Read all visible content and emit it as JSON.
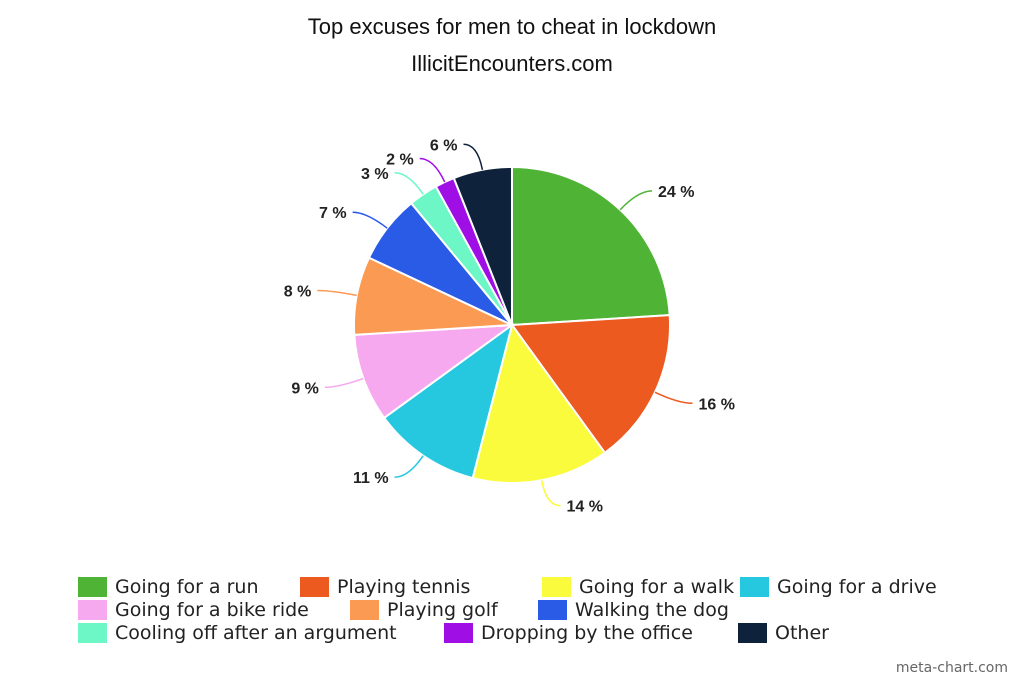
{
  "chart_data": {
    "type": "pie",
    "title": "Top excuses for men to cheat in lockdown",
    "subtitle": "IllicitEncounters.com",
    "slices": [
      {
        "label": "Going for a run",
        "value": 24,
        "value_label": "24 %",
        "color": "#4fb435"
      },
      {
        "label": "Playing tennis",
        "value": 16,
        "value_label": "16 %",
        "color": "#ec5a1f"
      },
      {
        "label": "Going for a walk",
        "value": 14,
        "value_label": "14 %",
        "color": "#fafb3c"
      },
      {
        "label": "Going for a drive",
        "value": 11,
        "value_label": "11 %",
        "color": "#26c8e0"
      },
      {
        "label": "Going for a bike ride",
        "value": 9,
        "value_label": "9 %",
        "color": "#f6a9ef"
      },
      {
        "label": "Playing golf",
        "value": 8,
        "value_label": "8 %",
        "color": "#fb9a53"
      },
      {
        "label": "Walking the dog",
        "value": 7,
        "value_label": "7 %",
        "color": "#2a5be6"
      },
      {
        "label": "Cooling off after an argument",
        "value": 3,
        "value_label": "3 %",
        "color": "#6df7c6"
      },
      {
        "label": "Dropping by the office",
        "value": 2,
        "value_label": "2 %",
        "color": "#a00ee6"
      },
      {
        "label": "Other",
        "value": 6,
        "value_label": "6 %",
        "color": "#0e223c"
      }
    ],
    "legend_position": "bottom"
  },
  "credit": "meta-chart.com"
}
